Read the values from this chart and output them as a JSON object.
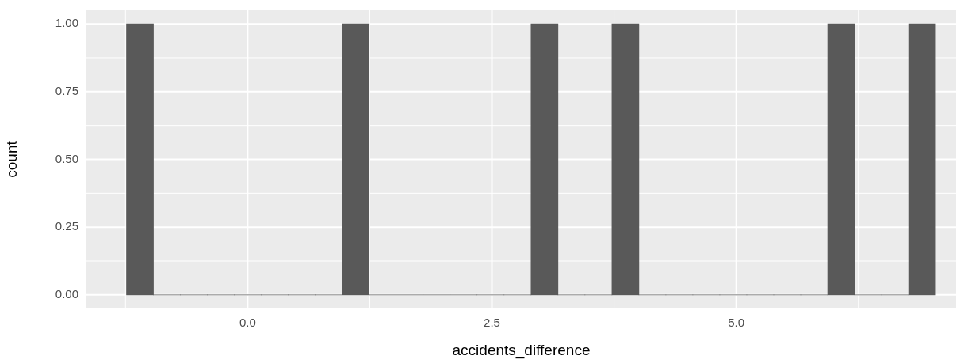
{
  "chart_data": {
    "type": "histogram",
    "xlabel": "accidents_difference",
    "ylabel": "count",
    "bins": [
      -1.24,
      -0.964,
      -0.688,
      -0.412,
      -0.136,
      0.14,
      0.416,
      0.692,
      0.968,
      1.244,
      1.52,
      1.796,
      2.072,
      2.348,
      2.624,
      2.9,
      3.176,
      3.452,
      3.728,
      4.004,
      4.28,
      4.556,
      4.832,
      5.108,
      5.384,
      5.66,
      5.936,
      6.212,
      6.488,
      6.764,
      7.04
    ],
    "values": [
      1,
      0,
      0,
      0,
      0,
      0,
      0,
      0,
      1,
      0,
      0,
      0,
      0,
      0,
      0,
      1,
      0,
      0,
      1,
      0,
      0,
      0,
      0,
      0,
      0,
      0,
      1,
      0,
      0,
      1
    ],
    "color": "#595959",
    "xlim": [
      -1.65,
      7.25
    ],
    "xticks": [
      {
        "value": 0,
        "label": "0.0"
      },
      {
        "value": 2.5,
        "label": "2.5"
      },
      {
        "value": 5,
        "label": "5.0"
      }
    ],
    "ylim": [
      -0.05,
      1.05
    ],
    "yticks": [
      {
        "value": 0,
        "label": "0.00"
      },
      {
        "value": 0.25,
        "label": "0.25"
      },
      {
        "value": 0.5,
        "label": "0.50"
      },
      {
        "value": 0.75,
        "label": "0.75"
      },
      {
        "value": 1,
        "label": "1.00"
      }
    ],
    "grid": true
  }
}
